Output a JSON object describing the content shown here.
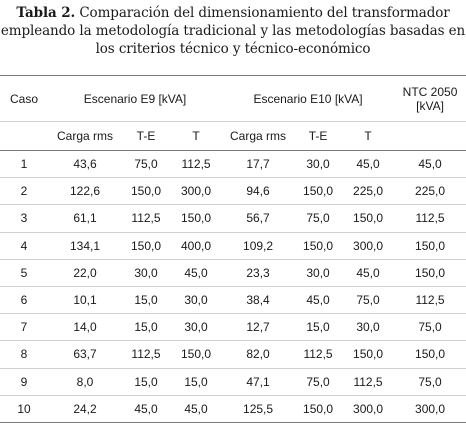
{
  "caption": {
    "lead": "Tabla 2.",
    "rest": " Comparación del dimensionamiento del transformador empleando la metodología tradicional y las metodologías basadas en los criterios técnico y técnico-económico"
  },
  "header": {
    "caso": "Caso",
    "escenario_e9": "Escenario E9 [kVA]",
    "escenario_e10": "Escenario E10 [kVA]",
    "ntc_line1": "NTC 2050",
    "ntc_line2": "[kVA]",
    "sub": {
      "carga_rms_e9": "Carga rms",
      "te_e9": "T-E",
      "t_e9": "T",
      "carga_rms_e10": "Carga rms",
      "te_e10": "T-E",
      "t_e10": "T"
    }
  },
  "rows": [
    {
      "caso": "1",
      "e9_carga": "43,6",
      "e9_te": "75,0",
      "e9_t": "112,5",
      "e10_carga": "17,7",
      "e10_te": "30,0",
      "e10_t": "45,0",
      "ntc": "45,0"
    },
    {
      "caso": "2",
      "e9_carga": "122,6",
      "e9_te": "150,0",
      "e9_t": "300,0",
      "e10_carga": "94,6",
      "e10_te": "150,0",
      "e10_t": "225,0",
      "ntc": "225,0"
    },
    {
      "caso": "3",
      "e9_carga": "61,1",
      "e9_te": "112,5",
      "e9_t": "150,0",
      "e10_carga": "56,7",
      "e10_te": "75,0",
      "e10_t": "150,0",
      "ntc": "112,5"
    },
    {
      "caso": "4",
      "e9_carga": "134,1",
      "e9_te": "150,0",
      "e9_t": "400,0",
      "e10_carga": "109,2",
      "e10_te": "150,0",
      "e10_t": "300,0",
      "ntc": "150,0"
    },
    {
      "caso": "5",
      "e9_carga": "22,0",
      "e9_te": "30,0",
      "e9_t": "45,0",
      "e10_carga": "23,3",
      "e10_te": "30,0",
      "e10_t": "45,0",
      "ntc": "150,0"
    },
    {
      "caso": "6",
      "e9_carga": "10,1",
      "e9_te": "15,0",
      "e9_t": "30,0",
      "e10_carga": "38,4",
      "e10_te": "45,0",
      "e10_t": "75,0",
      "ntc": "112,5"
    },
    {
      "caso": "7",
      "e9_carga": "14,0",
      "e9_te": "15,0",
      "e9_t": "30,0",
      "e10_carga": "12,7",
      "e10_te": "15,0",
      "e10_t": "30,0",
      "ntc": "75,0"
    },
    {
      "caso": "8",
      "e9_carga": "63,7",
      "e9_te": "112,5",
      "e9_t": "150,0",
      "e10_carga": "82,0",
      "e10_te": "112,5",
      "e10_t": "150,0",
      "ntc": "150,0"
    },
    {
      "caso": "9",
      "e9_carga": "8,0",
      "e9_te": "15,0",
      "e9_t": "15,0",
      "e10_carga": "47,1",
      "e10_te": "75,0",
      "e10_t": "112,5",
      "ntc": "75,0"
    },
    {
      "caso": "10",
      "e9_carga": "24,2",
      "e9_te": "45,0",
      "e9_t": "45,0",
      "e10_carga": "125,5",
      "e10_te": "150,0",
      "e10_t": "300,0",
      "ntc": "300,0"
    }
  ]
}
